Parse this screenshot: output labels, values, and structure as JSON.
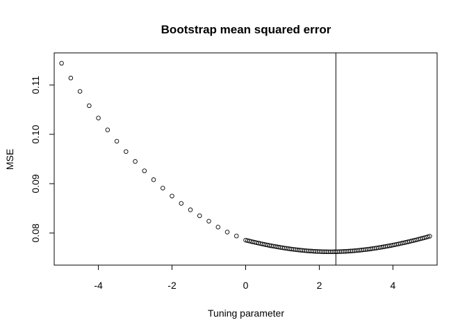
{
  "chart_data": {
    "type": "scatter",
    "title": "Bootstrap mean squared error",
    "xlabel": "Tuning parameter",
    "ylabel": "MSE",
    "xlim": [
      -5.2,
      5.2
    ],
    "ylim": [
      0.0735,
      0.1165
    ],
    "x_ticks": [
      -4,
      -2,
      0,
      2,
      4
    ],
    "x_tick_labels": [
      "-4",
      "-2",
      "0",
      "2",
      "4"
    ],
    "y_ticks": [
      0.08,
      0.09,
      0.1,
      0.11
    ],
    "y_tick_labels": [
      "0.08",
      "0.09",
      "0.10",
      "0.11"
    ],
    "grid": false,
    "vline_x": 2.45,
    "series": [
      {
        "x": [
          -5.0,
          -4.75,
          -4.5,
          -4.25,
          -4.0,
          -3.75,
          -3.5,
          -3.25,
          -3.0,
          -2.75,
          -2.5,
          -2.25,
          -2.0,
          -1.75,
          -1.5,
          -1.25,
          -1.0,
          -0.75,
          -0.5,
          -0.25,
          0.0,
          0.05,
          0.1,
          0.15,
          0.2,
          0.25,
          0.3,
          0.35,
          0.4,
          0.45,
          0.5,
          0.55,
          0.6,
          0.65,
          0.7,
          0.75,
          0.8,
          0.85,
          0.9,
          0.95,
          1.0,
          1.05,
          1.1,
          1.15,
          1.2,
          1.25,
          1.3,
          1.35,
          1.4,
          1.45,
          1.5,
          1.55,
          1.6,
          1.65,
          1.7,
          1.75,
          1.8,
          1.85,
          1.9,
          1.95,
          2.0,
          2.05,
          2.1,
          2.15,
          2.2,
          2.25,
          2.3,
          2.35,
          2.4,
          2.45,
          2.5,
          2.55,
          2.6,
          2.65,
          2.7,
          2.75,
          2.8,
          2.85,
          2.9,
          2.95,
          3.0,
          3.05,
          3.1,
          3.15,
          3.2,
          3.25,
          3.3,
          3.35,
          3.4,
          3.45,
          3.5,
          3.55,
          3.6,
          3.65,
          3.7,
          3.75,
          3.8,
          3.85,
          3.9,
          3.95,
          4.0,
          4.05,
          4.1,
          4.15,
          4.2,
          4.25,
          4.3,
          4.35,
          4.4,
          4.45,
          4.5,
          4.55,
          4.6,
          4.65,
          4.7,
          4.75,
          4.8,
          4.85,
          4.9,
          4.95,
          5.0
        ],
        "y": [
          0.1144,
          0.1114,
          0.1087,
          0.1058,
          0.1033,
          0.1009,
          0.0986,
          0.0965,
          0.0945,
          0.0926,
          0.0908,
          0.0891,
          0.0875,
          0.086,
          0.0847,
          0.0835,
          0.0824,
          0.0812,
          0.0802,
          0.0794,
          0.07856,
          0.07847,
          0.07838,
          0.07829,
          0.0782,
          0.07812,
          0.07803,
          0.07795,
          0.07787,
          0.07779,
          0.07771,
          0.07763,
          0.07756,
          0.07748,
          0.07741,
          0.07734,
          0.07727,
          0.07721,
          0.07714,
          0.07708,
          0.07702,
          0.07696,
          0.0769,
          0.07685,
          0.07679,
          0.07674,
          0.07669,
          0.07665,
          0.0766,
          0.07656,
          0.07652,
          0.07648,
          0.07645,
          0.07641,
          0.07638,
          0.07635,
          0.07633,
          0.0763,
          0.07628,
          0.07626,
          0.07625,
          0.07623,
          0.07622,
          0.07621,
          0.07621,
          0.0762,
          0.0762,
          0.0762,
          0.07621,
          0.07621,
          0.07622,
          0.07623,
          0.07625,
          0.07626,
          0.07628,
          0.0763,
          0.07633,
          0.07635,
          0.07638,
          0.07641,
          0.07645,
          0.07648,
          0.07652,
          0.07656,
          0.0766,
          0.07665,
          0.07669,
          0.07674,
          0.07679,
          0.07685,
          0.0769,
          0.07696,
          0.07702,
          0.07708,
          0.07714,
          0.07721,
          0.07727,
          0.07734,
          0.07741,
          0.07748,
          0.07756,
          0.07763,
          0.07771,
          0.07779,
          0.07787,
          0.07795,
          0.07803,
          0.07812,
          0.0782,
          0.07829,
          0.07838,
          0.07847,
          0.07856,
          0.07865,
          0.07875,
          0.07884,
          0.07894,
          0.07904,
          0.07914,
          0.07925,
          0.07935
        ]
      }
    ]
  }
}
